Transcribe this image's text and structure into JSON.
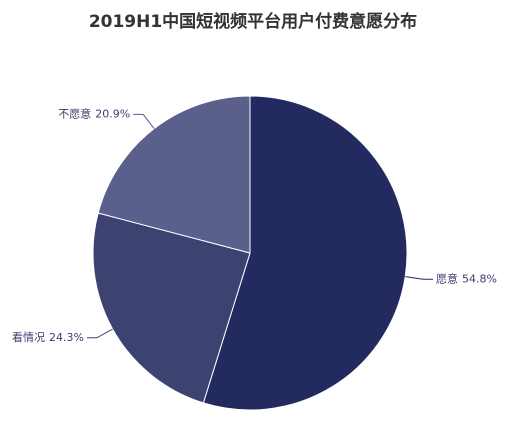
{
  "chart_data": {
    "type": "pie",
    "title": "2019H1中国短视频平台用户付费意愿分布",
    "categories": [
      "愿意",
      "看情况",
      "不愿意"
    ],
    "values": [
      54.8,
      24.3,
      20.9
    ],
    "value_labels": [
      "54.8%",
      "24.3%",
      "20.9%"
    ],
    "colors": [
      "#222a60",
      "#3d4371",
      "#5a5f8b"
    ]
  }
}
